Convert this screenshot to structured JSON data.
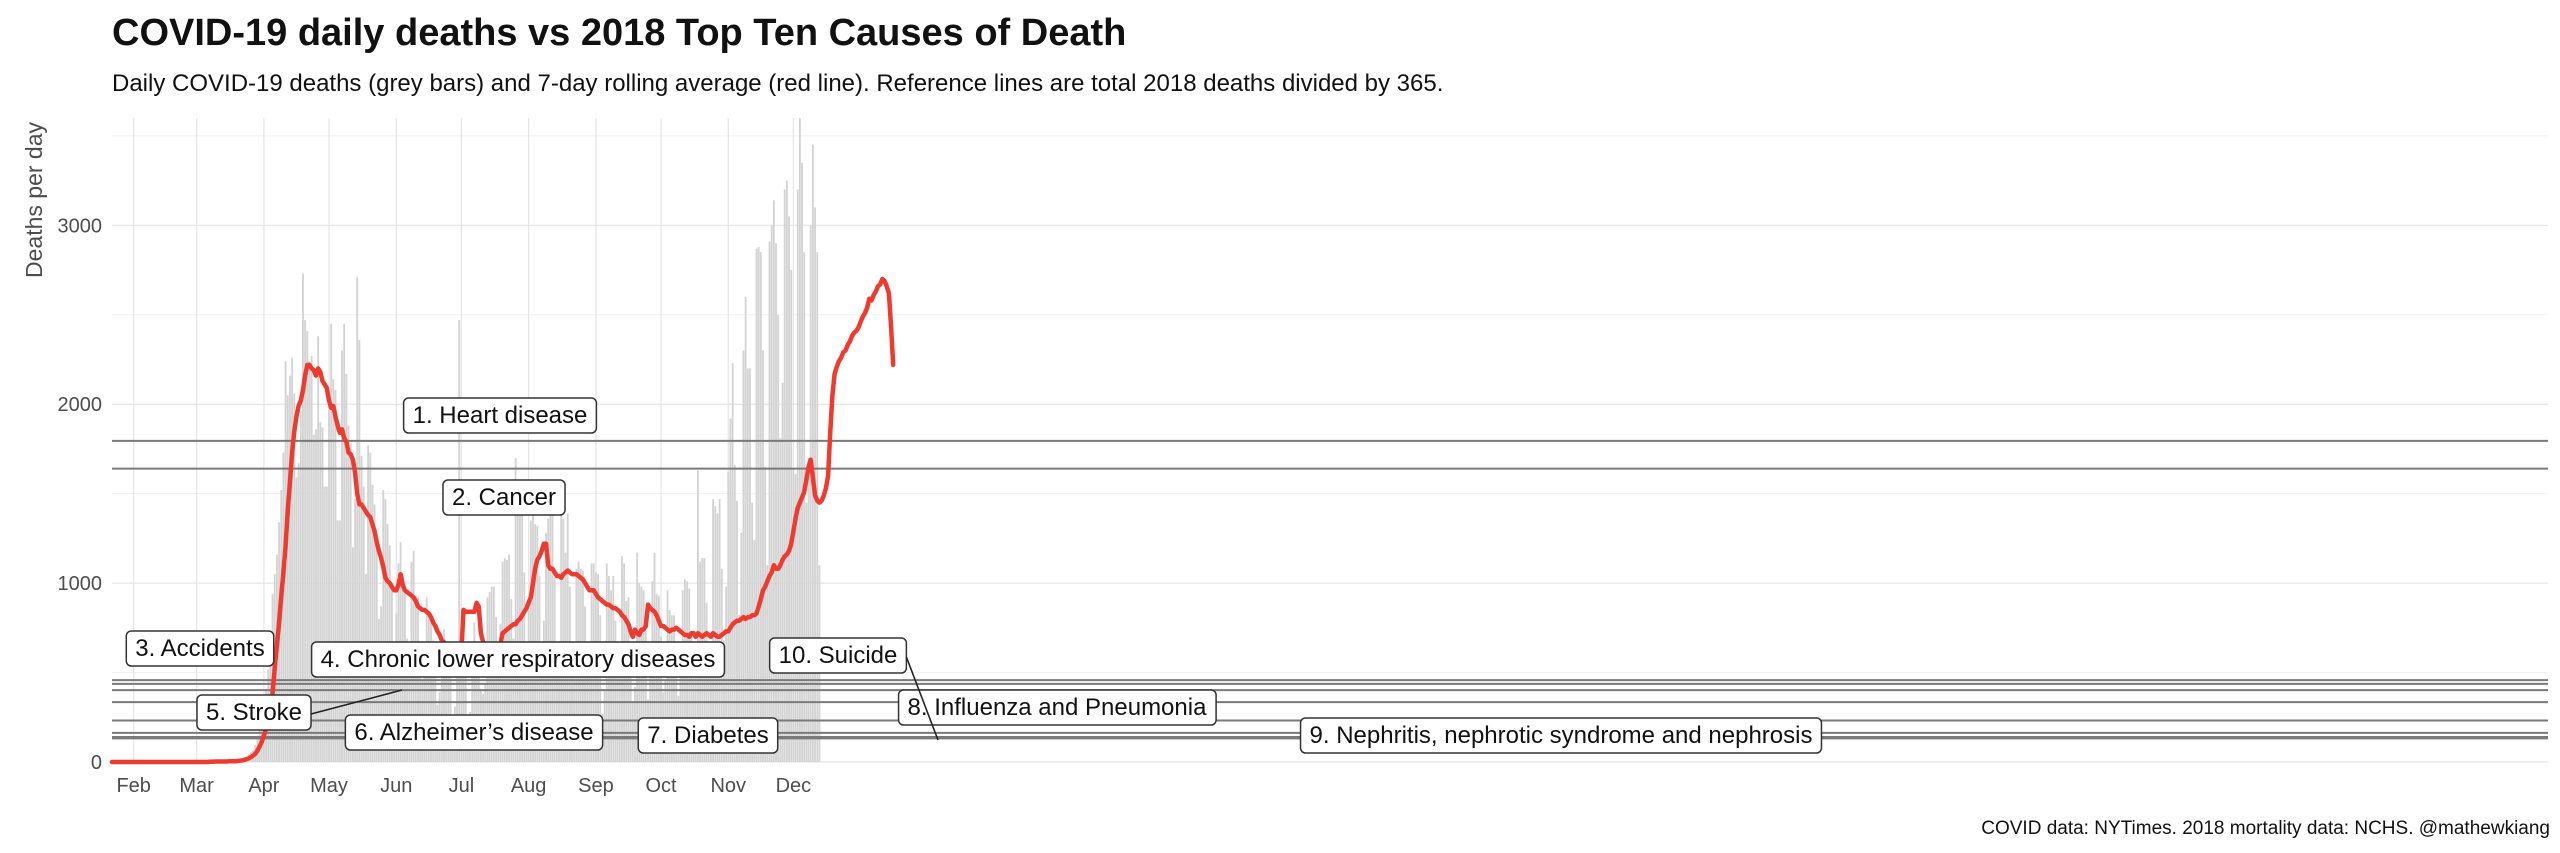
{
  "title": "COVID-19 daily deaths vs 2018 Top Ten Causes of Death",
  "subtitle": "Daily COVID-19 deaths (grey bars) and 7-day rolling average (red line). Reference lines are total 2018 deaths divided by 365.",
  "caption": "COVID data: NYTimes. 2018 mortality data: NCHS. @mathewkiang",
  "colors": {
    "bars": "#d3d3d3",
    "line": "#ee3b30",
    "reference": "#7a7a7a",
    "grid": "#e5e5e5"
  },
  "chart_data": {
    "type": "bar",
    "xlabel": "",
    "ylabel": "Deaths per day",
    "x_start": "2020-01-22",
    "ylim": [
      0,
      3600
    ],
    "yticks": [
      0,
      1000,
      2000,
      3000
    ],
    "xticks": [
      {
        "label": "Feb",
        "date": "2020-02-01"
      },
      {
        "label": "Mar",
        "date": "2020-03-01"
      },
      {
        "label": "Apr",
        "date": "2020-04-01"
      },
      {
        "label": "May",
        "date": "2020-05-01"
      },
      {
        "label": "Jun",
        "date": "2020-06-01"
      },
      {
        "label": "Jul",
        "date": "2020-07-01"
      },
      {
        "label": "Aug",
        "date": "2020-08-01"
      },
      {
        "label": "Sep",
        "date": "2020-09-01"
      },
      {
        "label": "Oct",
        "date": "2020-10-01"
      },
      {
        "label": "Nov",
        "date": "2020-11-01"
      },
      {
        "label": "Dec",
        "date": "2020-12-01"
      }
    ],
    "grid": true,
    "legend": "none",
    "series": [
      {
        "kind": "bar",
        "daily_deaths": [
          0,
          0,
          0,
          0,
          0,
          0,
          0,
          0,
          0,
          0,
          0,
          0,
          0,
          0,
          0,
          0,
          0,
          0,
          0,
          0,
          0,
          0,
          0,
          0,
          0,
          0,
          0,
          0,
          0,
          0,
          0,
          0,
          0,
          0,
          0,
          0,
          0,
          0,
          0,
          1,
          0,
          0,
          0,
          0,
          2,
          2,
          5,
          3,
          4,
          1,
          6,
          2,
          5,
          3,
          3,
          5,
          5,
          9,
          12,
          13,
          18,
          24,
          30,
          46,
          56,
          65,
          95,
          140,
          180,
          250,
          300,
          410,
          520,
          680,
          940,
          1050,
          1160,
          1340,
          1520,
          1730,
          2240,
          2050,
          2160,
          2260,
          2060,
          1590,
          1670,
          1960,
          2730,
          2470,
          2410,
          2240,
          2270,
          1830,
          1860,
          2380,
          1900,
          1870,
          1540,
          1540,
          2080,
          2450,
          2140,
          2080,
          1350,
          1350,
          2300,
          2450,
          2170,
          1880,
          1780,
          1200,
          1470,
          2710,
          2360,
          1710,
          1540,
          1050,
          1770,
          1730,
          1550,
          1440,
          1200,
          800,
          870,
          1520,
          1470,
          1330,
          1210,
          1000,
          640,
          830,
          1110,
          1230,
          1040,
          970,
          690,
          650,
          1120,
          1180,
          930,
          920,
          670,
          460,
          520,
          920,
          830,
          780,
          680,
          560,
          320,
          390,
          660,
          740,
          590,
          520,
          480,
          260,
          310,
          550,
          2470,
          690,
          620,
          530,
          250,
          280,
          570,
          780,
          560,
          640,
          410,
          380,
          440,
          920,
          950,
          980,
          980,
          810,
          480,
          770,
          1120,
          1140,
          1130,
          1160,
          910,
          690,
          1700,
          1550,
          1410,
          1530,
          1060,
          530,
          850,
          1350,
          1490,
          1330,
          1320,
          1040,
          540,
          790,
          1280,
          1360,
          1470,
          1480,
          1030,
          490,
          620,
          1390,
          1360,
          1170,
          1390,
          980,
          510,
          620,
          1080,
          1120,
          1080,
          1070,
          870,
          510,
          600,
          1110,
          1110,
          1060,
          1050,
          820,
          270,
          400,
          1110,
          1040,
          960,
          1040,
          790,
          510,
          590,
          1150,
          1110,
          900,
          920,
          640,
          340,
          420,
          1170,
          1000,
          980,
          960,
          730,
          350,
          620,
          1010,
          1170,
          940,
          930,
          700,
          390,
          460,
          960,
          850,
          820,
          820,
          540,
          370,
          640,
          960,
          1020,
          1010,
          970,
          730,
          470,
          560,
          1630,
          1120,
          1140,
          1140,
          890,
          580,
          670,
          1470,
          1430,
          1390,
          1470,
          1080,
          680,
          980,
          1620,
          1920,
          2230,
          1660,
          1460,
          820,
          1280,
          2300,
          2600,
          2200,
          2200,
          1450,
          1240,
          2870,
          2880,
          2850,
          2300,
          1650,
          1100,
          2910,
          3000,
          3140,
          2900,
          2500,
          1810,
          2120,
          3200,
          3250,
          3050,
          2750,
          1640,
          1610,
          3200,
          3600,
          3350,
          2850,
          1450,
          1700,
          3000,
          3450,
          3100,
          2850,
          1100
        ]
      },
      {
        "kind": "line",
        "rolling_7day": [
          0,
          0,
          0,
          0,
          0,
          0,
          0,
          0,
          0,
          0,
          0,
          0,
          0,
          0,
          0,
          0,
          0,
          0,
          0,
          0,
          0,
          0,
          0,
          0,
          0,
          0,
          0,
          0,
          0,
          0,
          0,
          0,
          0,
          0,
          0,
          0,
          0,
          0,
          0,
          0,
          0,
          0,
          0,
          0,
          0,
          1,
          1,
          2,
          3,
          3,
          3,
          3,
          3,
          3,
          4,
          4,
          4,
          4,
          6,
          7,
          9,
          12,
          16,
          20,
          27,
          35,
          46,
          63,
          86,
          112,
          148,
          187,
          239,
          305,
          387,
          530,
          650,
          780,
          930,
          1060,
          1210,
          1410,
          1560,
          1730,
          1850,
          1930,
          1990,
          2020,
          2080,
          2160,
          2220,
          2220,
          2200,
          2190,
          2160,
          2200,
          2180,
          2130,
          2110,
          2090,
          2020,
          1980,
          1990,
          1930,
          1880,
          1840,
          1860,
          1810,
          1790,
          1730,
          1720,
          1690,
          1620,
          1500,
          1440,
          1440,
          1420,
          1400,
          1380,
          1370,
          1330,
          1290,
          1230,
          1180,
          1140,
          1090,
          1030,
          1010,
          1000,
          980,
          960,
          960,
          990,
          1050,
          990,
          960,
          950,
          940,
          930,
          920,
          900,
          870,
          860,
          850,
          850,
          840,
          830,
          810,
          780,
          760,
          730,
          710,
          680,
          670,
          650,
          630,
          620,
          600,
          600,
          610,
          620,
          620,
          850,
          840,
          840,
          840,
          840,
          840,
          890,
          870,
          720,
          670,
          660,
          660,
          650,
          590,
          580,
          620,
          640,
          660,
          720,
          730,
          740,
          750,
          760,
          770,
          770,
          790,
          800,
          820,
          840,
          860,
          890,
          920,
          1000,
          1080,
          1130,
          1150,
          1180,
          1220,
          1220,
          1100,
          1080,
          1080,
          1060,
          1040,
          1040,
          1030,
          1050,
          1060,
          1070,
          1060,
          1050,
          1050,
          1050,
          1040,
          1030,
          1020,
          1000,
          980,
          960,
          960,
          960,
          940,
          920,
          910,
          900,
          890,
          880,
          880,
          870,
          860,
          860,
          850,
          840,
          820,
          810,
          790,
          770,
          730,
          700,
          740,
          720,
          710,
          740,
          740,
          760,
          880,
          860,
          850,
          840,
          820,
          790,
          760,
          760,
          750,
          740,
          730,
          740,
          740,
          750,
          740,
          730,
          720,
          710,
          710,
          700,
          720,
          720,
          700,
          720,
          710,
          700,
          710,
          720,
          710,
          700,
          720,
          710,
          700,
          700,
          710,
          720,
          730,
          730,
          750,
          770,
          780,
          790,
          790,
          800,
          810,
          800,
          810,
          810,
          820,
          820,
          830,
          870,
          910,
          960,
          980,
          1010,
          1040,
          1060,
          1100,
          1080,
          1080,
          1100,
          1130,
          1150,
          1160,
          1180,
          1220,
          1290,
          1360,
          1420,
          1450,
          1480,
          1510,
          1580,
          1650,
          1690,
          1590,
          1490,
          1460,
          1450,
          1460,
          1490,
          1530,
          1600,
          1850,
          2050,
          2170,
          2210,
          2240,
          2260,
          2290,
          2300,
          2330,
          2350,
          2380,
          2400,
          2410,
          2430,
          2460,
          2490,
          2510,
          2540,
          2590,
          2580,
          2610,
          2630,
          2660,
          2670,
          2700,
          2690,
          2660,
          2620,
          2440,
          2220
        ]
      }
    ],
    "reference_lines": [
      {
        "label": "1. Heart disease",
        "value": 1795
      },
      {
        "label": "2. Cancer",
        "value": 1640
      },
      {
        "label": "3. Accidents",
        "value": 458
      },
      {
        "label": "4. Chronic lower respiratory diseases",
        "value": 437
      },
      {
        "label": "5. Stroke",
        "value": 402
      },
      {
        "label": "6. Alzheimer’s disease",
        "value": 335
      },
      {
        "label": "7. Diabetes",
        "value": 232
      },
      {
        "label": "8. Influenza and Pneumonia",
        "value": 163
      },
      {
        "label": "9. Nephritis, nephrotic syndrome and nephrosis",
        "value": 140
      },
      {
        "label": "10. Suicide",
        "value": 132
      }
    ]
  }
}
